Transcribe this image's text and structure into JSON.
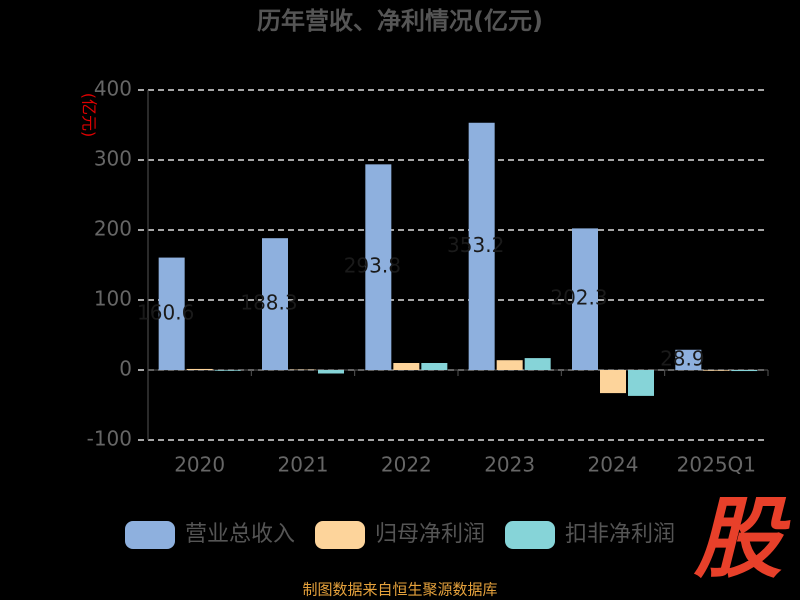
{
  "chart_data": {
    "type": "bar",
    "title": "历年营收、净利情况(亿元)",
    "y_axis_label": "(亿元)",
    "categories": [
      "2020",
      "2021",
      "2022",
      "2023",
      "2024",
      "2025Q1"
    ],
    "series": [
      {
        "name": "营业总收入",
        "color": "#8eb0de",
        "values": [
          160.6,
          188.3,
          293.8,
          353.2,
          202.3,
          28.9
        ]
      },
      {
        "name": "归母净利润",
        "color": "#fdd49b",
        "values": [
          1.5,
          0.5,
          10,
          14,
          -33,
          -1
        ]
      },
      {
        "name": "扣非净利润",
        "color": "#86d4d8",
        "values": [
          -1,
          -5,
          10,
          17,
          -37,
          -1.5
        ]
      }
    ],
    "ylim": [
      -100,
      400
    ],
    "yticks": [
      -100,
      0,
      100,
      200,
      300,
      400
    ],
    "grid": true,
    "legend": "bottom",
    "source": "制图数据来自恒生聚源数据库",
    "logo": "股"
  }
}
